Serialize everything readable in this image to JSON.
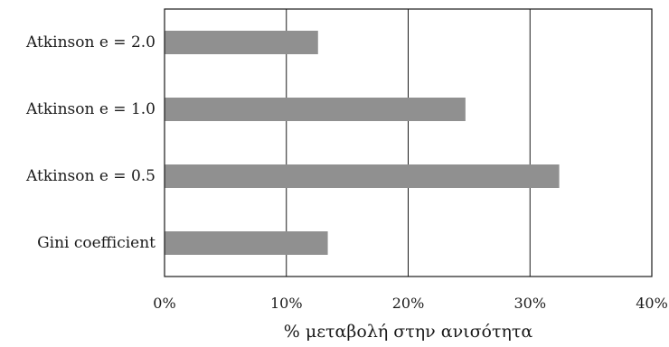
{
  "chart_data": {
    "type": "bar",
    "orientation": "horizontal",
    "categories": [
      "Atkinson e = 2.0",
      "Atkinson e = 1.0",
      "Atkinson e = 0.5",
      "Gini coefficient"
    ],
    "values": [
      12.6,
      24.7,
      32.4,
      13.4
    ],
    "xlabel": "% μεταβολή στην ανισότητα",
    "ylabel": "",
    "xlim": [
      0,
      40
    ],
    "xticks": [
      0,
      10,
      20,
      30,
      40
    ],
    "xtick_labels": [
      "0%",
      "10%",
      "20%",
      "30%",
      "40%"
    ],
    "grid": "vertical",
    "bar_color": "#909090"
  }
}
